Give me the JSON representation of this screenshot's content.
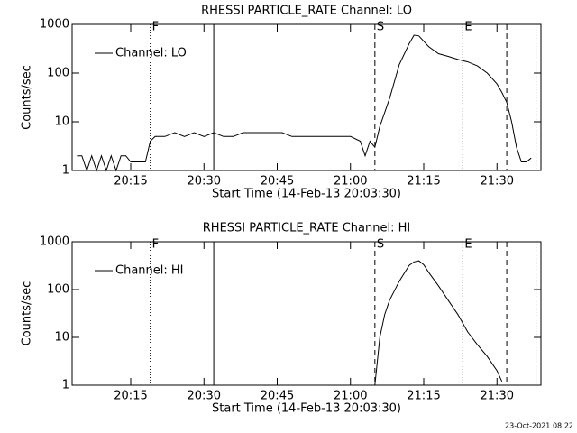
{
  "chart_data": [
    {
      "type": "line",
      "title": "RHESSI PARTICLE_RATE Channel: LO",
      "xlabel": "Start Time (14-Feb-13 20:03:30)",
      "ylabel": "Counts/sec",
      "log_y": true,
      "ylim": [
        1,
        1000
      ],
      "yticks": [
        1,
        10,
        100,
        1000
      ],
      "xlim": [
        "20:03",
        "21:39"
      ],
      "xticks": [
        "20:15",
        "20:30",
        "20:45",
        "21:00",
        "21:15",
        "21:30"
      ],
      "x": [
        "20:04",
        "20:05",
        "20:06",
        "20:07",
        "20:08",
        "20:09",
        "20:10",
        "20:11",
        "20:12",
        "20:13",
        "20:14",
        "20:15",
        "20:16",
        "20:17",
        "20:18",
        "20:19",
        "20:20",
        "20:22",
        "20:24",
        "20:26",
        "20:28",
        "20:30",
        "20:32",
        "20:34",
        "20:36",
        "20:38",
        "20:40",
        "20:42",
        "20:44",
        "20:46",
        "20:48",
        "20:50",
        "20:52",
        "20:54",
        "20:56",
        "20:58",
        "21:00",
        "21:02",
        "21:03",
        "21:04",
        "21:05",
        "21:06",
        "21:08",
        "21:10",
        "21:12",
        "21:13",
        "21:14",
        "21:16",
        "21:18",
        "21:20",
        "21:22",
        "21:24",
        "21:26",
        "21:28",
        "21:30",
        "21:31",
        "21:32",
        "21:33",
        "21:34",
        "21:35",
        "21:36",
        "21:37"
      ],
      "series": [
        {
          "name": "Channel: LO",
          "color": "#000000",
          "values": [
            2,
            2,
            1,
            2,
            1,
            2,
            1,
            2,
            1,
            2,
            2,
            1.5,
            1.5,
            1.5,
            1.5,
            4,
            5,
            5,
            6,
            5,
            6,
            5,
            6,
            5,
            5,
            6,
            6,
            6,
            6,
            6,
            5,
            5,
            5,
            5,
            5,
            5,
            5,
            4,
            2,
            4,
            3,
            8,
            30,
            150,
            400,
            600,
            580,
            350,
            250,
            220,
            190,
            170,
            140,
            100,
            60,
            40,
            25,
            10,
            3,
            1.5,
            1.5,
            1.8
          ]
        }
      ],
      "markers": [
        {
          "x": "20:19",
          "style": "dotted",
          "label": "F"
        },
        {
          "x": "20:32",
          "style": "solid"
        },
        {
          "x": "21:05",
          "style": "dashed",
          "label": "S"
        },
        {
          "x": "21:23",
          "style": "dotted",
          "label": "E"
        },
        {
          "x": "21:32",
          "style": "dashed"
        },
        {
          "x": "21:38",
          "style": "dotted"
        }
      ]
    },
    {
      "type": "line",
      "title": "RHESSI PARTICLE_RATE Channel: HI",
      "xlabel": "Start Time (14-Feb-13 20:03:30)",
      "ylabel": "Counts/sec",
      "log_y": true,
      "ylim": [
        1,
        1000
      ],
      "yticks": [
        1,
        10,
        100,
        1000
      ],
      "xlim": [
        "20:03",
        "21:39"
      ],
      "xticks": [
        "20:15",
        "20:30",
        "20:45",
        "21:00",
        "21:15",
        "21:30"
      ],
      "x": [
        "21:05",
        "21:06",
        "21:07",
        "21:08",
        "21:10",
        "21:12",
        "21:13",
        "21:14",
        "21:15",
        "21:16",
        "21:18",
        "21:20",
        "21:22",
        "21:24",
        "21:26",
        "21:28",
        "21:30",
        "21:31"
      ],
      "series": [
        {
          "name": "Channel: HI",
          "color": "#000000",
          "values": [
            1,
            10,
            30,
            60,
            150,
            320,
            380,
            400,
            330,
            230,
            120,
            60,
            30,
            13,
            7,
            4,
            2,
            1.2
          ]
        }
      ],
      "markers": [
        {
          "x": "20:19",
          "style": "dotted",
          "label": "F"
        },
        {
          "x": "20:32",
          "style": "solid"
        },
        {
          "x": "21:05",
          "style": "dashed",
          "label": "S"
        },
        {
          "x": "21:23",
          "style": "dotted",
          "label": "E"
        },
        {
          "x": "21:32",
          "style": "dashed"
        },
        {
          "x": "21:38",
          "style": "dotted"
        }
      ]
    }
  ],
  "timestamp": "23-Oct-2021 08:22"
}
